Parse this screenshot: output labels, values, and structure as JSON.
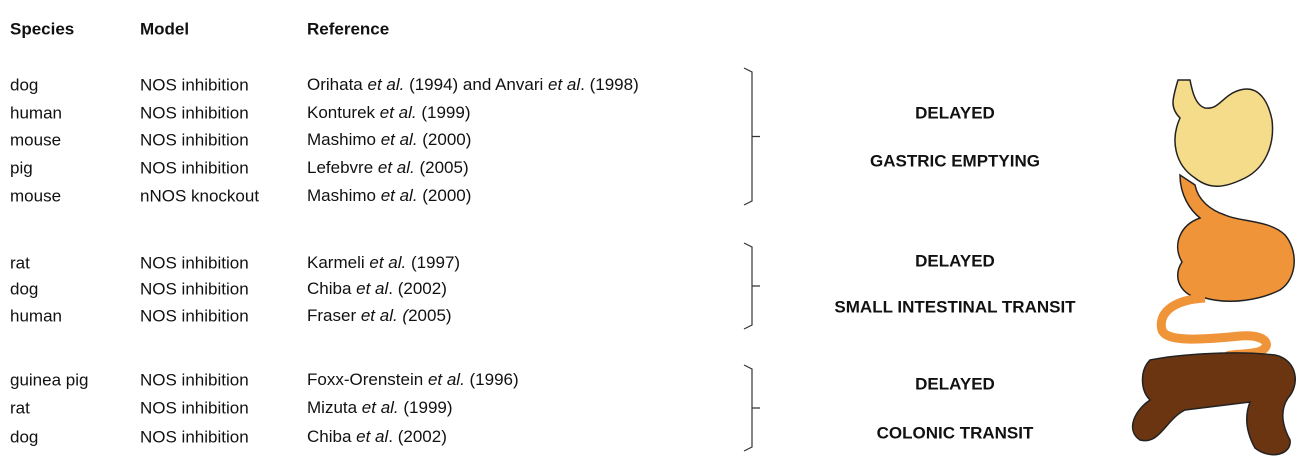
{
  "header": {
    "species": "Species",
    "model": "Model",
    "reference": "Reference"
  },
  "groups": [
    {
      "rows": [
        {
          "species": "dog",
          "model": "NOS inhibition",
          "reference": [
            "Orihata ",
            "et al.",
            " (1994) and Anvari ",
            "et al",
            ". (1998)"
          ]
        },
        {
          "species": "human",
          "model": "NOS inhibition",
          "reference": [
            "Konturek ",
            "et al.",
            " (1999)"
          ]
        },
        {
          "species": "mouse",
          "model": "NOS inhibition",
          "reference": [
            "Mashimo ",
            "et al.",
            " (2000)"
          ]
        },
        {
          "species": "pig",
          "model": "NOS inhibition",
          "reference": [
            "Lefebvre ",
            "et al.",
            " (2005)"
          ]
        },
        {
          "species": "mouse",
          "model": "nNOS knockout",
          "reference": [
            "Mashimo ",
            "et al.",
            " (2000)"
          ]
        }
      ],
      "outcome": [
        "DELAYED",
        "GASTRIC EMPTYING"
      ]
    },
    {
      "rows": [
        {
          "species": "rat",
          "model": "NOS inhibition",
          "reference": [
            "Karmeli ",
            "et al.",
            " (1997)"
          ]
        },
        {
          "species": "dog",
          "model": "NOS inhibition",
          "reference": [
            "Chiba ",
            "et al",
            ". (2002)"
          ]
        },
        {
          "species": "human",
          "model": "NOS inhibition",
          "reference": [
            "Fraser ",
            "et al. (",
            "2005)"
          ]
        }
      ],
      "outcome": [
        "DELAYED",
        "SMALL INTESTINAL TRANSIT"
      ]
    },
    {
      "rows": [
        {
          "species": "guinea pig",
          "model": "NOS inhibition",
          "reference": [
            "Foxx-Orenstein ",
            "et al.",
            " (1996)"
          ]
        },
        {
          "species": "rat",
          "model": "NOS inhibition",
          "reference": [
            "Mizuta ",
            "et al.",
            " (1999)"
          ]
        },
        {
          "species": "dog",
          "model": "NOS inhibition",
          "reference": [
            "Chiba ",
            "et al",
            ". (2002)"
          ]
        }
      ],
      "outcome": [
        "DELAYED",
        "COLONIC TRANSIT"
      ]
    }
  ]
}
